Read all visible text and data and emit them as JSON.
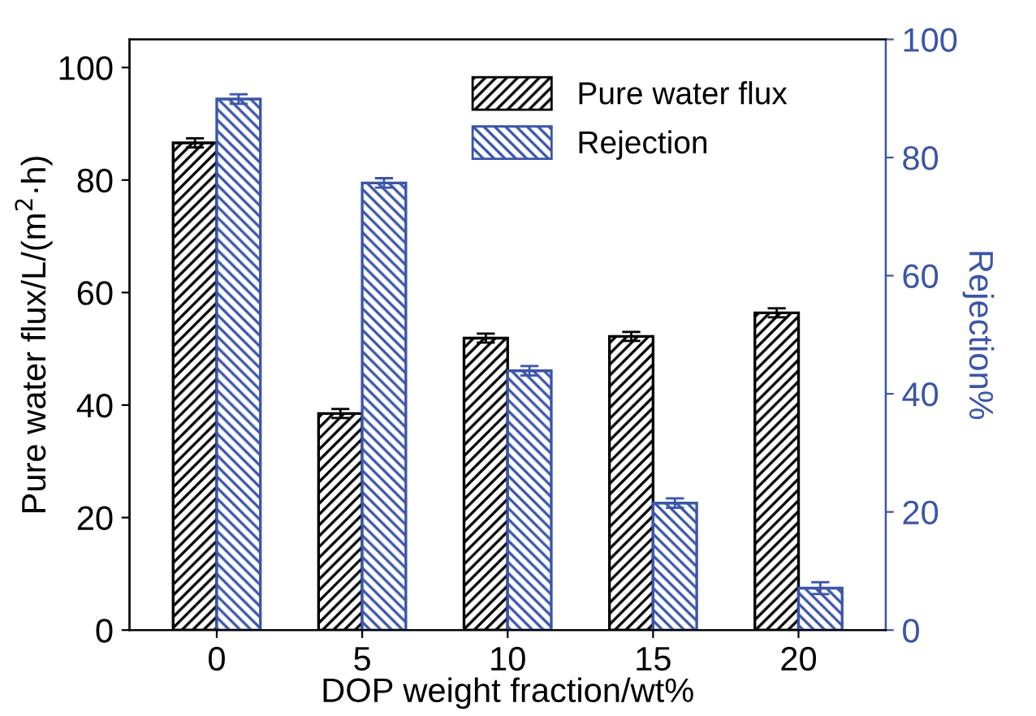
{
  "chart_data": {
    "type": "bar",
    "xlabel": "DOP weight fraction/wt%",
    "ylabel": "Pure water flux/L/(m$^{2}$·h)",
    "y2label": "Rejection%",
    "categories": [
      "0",
      "5",
      "10",
      "15",
      "20"
    ],
    "series": [
      {
        "name": "Pure water flux",
        "color": "#000000",
        "values": [
          86.6,
          38.5,
          51.9,
          52.2,
          56.4
        ],
        "errors": [
          0.8,
          0.8,
          0.8,
          0.8,
          0.8
        ]
      },
      {
        "name": "Rejection",
        "color": "#3b55a8",
        "axis": "y2",
        "values": [
          89.9,
          75.7,
          43.9,
          21.5,
          7.1
        ],
        "errors": [
          0.8,
          0.8,
          0.8,
          0.8,
          1.0
        ]
      }
    ],
    "ylim": [
      0,
      105
    ],
    "yticks": [
      0,
      20,
      40,
      60,
      80,
      100
    ],
    "y2lim": [
      0,
      100
    ],
    "y2ticks": [
      0,
      20,
      40,
      60,
      80,
      100
    ],
    "legend": "top right",
    "grid": false
  }
}
